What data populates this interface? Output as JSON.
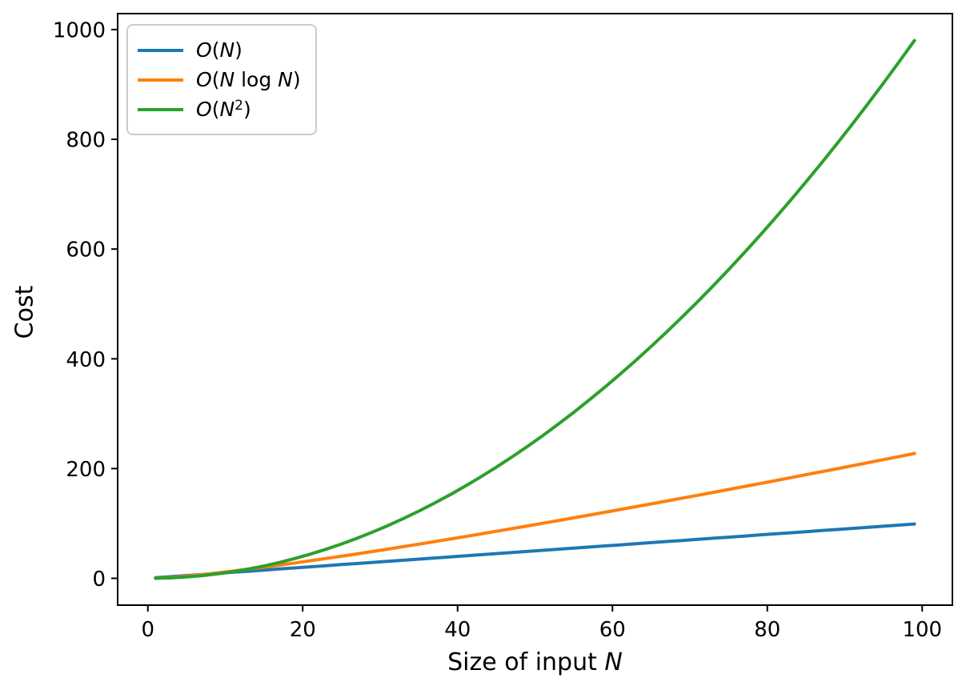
{
  "chart_data": {
    "type": "line",
    "title": "",
    "xlabel": "Size of input N",
    "ylabel": "Cost",
    "xlabel_tokens": [
      {
        "t": "Size of input ",
        "i": false
      },
      {
        "t": "N",
        "i": true
      }
    ],
    "xlim": [
      -3.9,
      103.9
    ],
    "ylim": [
      -48.9,
      1029.1
    ],
    "xticks": [
      0,
      20,
      40,
      60,
      80,
      100
    ],
    "yticks": [
      0,
      200,
      400,
      600,
      800,
      1000
    ],
    "grid": false,
    "axis_color": "#000000",
    "legend": {
      "position": "upper left",
      "border_color": "#cccccc",
      "items": [
        {
          "label": "O(N)",
          "color": "#1f77b4",
          "tokens": [
            {
              "t": "O",
              "i": true
            },
            {
              "t": "(",
              "i": false
            },
            {
              "t": "N",
              "i": true
            },
            {
              "t": ")",
              "i": false
            }
          ]
        },
        {
          "label": "O(N log N)",
          "color": "#ff7f0e",
          "tokens": [
            {
              "t": "O",
              "i": true
            },
            {
              "t": "(",
              "i": false
            },
            {
              "t": "N",
              "i": true
            },
            {
              "t": " log ",
              "i": false
            },
            {
              "t": "N",
              "i": true
            },
            {
              "t": ")",
              "i": false
            }
          ]
        },
        {
          "label": "O(N²)",
          "color": "#2ca02c",
          "tokens": [
            {
              "t": "O",
              "i": true
            },
            {
              "t": "(",
              "i": false
            },
            {
              "t": "N",
              "i": true
            },
            {
              "t": "2",
              "i": false,
              "sup": true
            },
            {
              "t": ")",
              "i": false
            }
          ]
        }
      ]
    },
    "x": [
      1,
      3,
      5,
      7,
      9,
      11,
      13,
      15,
      17,
      19,
      21,
      23,
      25,
      27,
      29,
      31,
      33,
      35,
      37,
      39,
      41,
      43,
      45,
      47,
      49,
      51,
      53,
      55,
      57,
      59,
      61,
      63,
      65,
      67,
      69,
      71,
      73,
      75,
      77,
      79,
      81,
      83,
      85,
      87,
      89,
      91,
      93,
      95,
      97,
      99
    ],
    "series": [
      {
        "name": "O(N)",
        "color": "#1f77b4",
        "values": [
          1,
          3,
          5,
          7,
          9,
          11,
          13,
          15,
          17,
          19,
          21,
          23,
          25,
          27,
          29,
          31,
          33,
          35,
          37,
          39,
          41,
          43,
          45,
          47,
          49,
          51,
          53,
          55,
          57,
          59,
          61,
          63,
          65,
          67,
          69,
          71,
          73,
          75,
          77,
          79,
          81,
          83,
          85,
          87,
          89,
          91,
          93,
          95,
          97,
          99
        ]
      },
      {
        "name": "O(N log N)",
        "color": "#ff7f0e",
        "values": [
          0,
          1.6,
          4,
          6.8,
          9.9,
          13.2,
          16.7,
          20.3,
          24.1,
          28,
          32,
          36.1,
          40.2,
          44.5,
          48.8,
          53.2,
          57.7,
          62.2,
          66.8,
          71.4,
          76.1,
          80.9,
          85.7,
          90.5,
          95.3,
          100.3,
          105.2,
          110.2,
          115.2,
          120.3,
          125.4,
          130.5,
          135.7,
          140.9,
          146.1,
          151.3,
          156.6,
          161.9,
          167.2,
          172.6,
          178,
          183.4,
          188.8,
          194.3,
          199.7,
          205.2,
          210.8,
          216.3,
          221.9,
          227.5
        ]
      },
      {
        "name": "O(N²)",
        "color": "#2ca02c",
        "values": [
          0.1,
          0.9,
          2.5,
          4.9,
          8.1,
          12.1,
          16.9,
          22.5,
          28.9,
          36.1,
          44.1,
          52.9,
          62.5,
          72.9,
          84.1,
          96.1,
          108.9,
          122.5,
          136.9,
          152.1,
          168.1,
          184.9,
          202.5,
          220.9,
          240.1,
          260.1,
          280.9,
          302.5,
          324.9,
          348.1,
          372.1,
          396.9,
          422.5,
          448.9,
          476.1,
          504.1,
          532.9,
          562.5,
          592.9,
          624.1,
          656.1,
          688.9,
          722.5,
          756.9,
          792.1,
          828.1,
          864.9,
          902.5,
          940.9,
          980.1
        ]
      }
    ]
  }
}
